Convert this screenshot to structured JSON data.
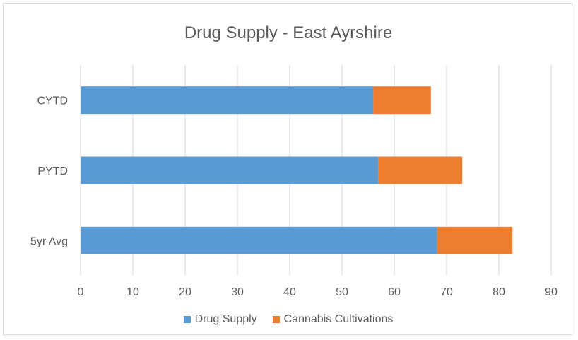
{
  "chart_data": {
    "type": "bar",
    "orientation": "horizontal",
    "stacked": true,
    "title": "Drug Supply - East Ayrshire",
    "xlabel": "",
    "ylabel": "",
    "categories": [
      "CYTD",
      "PYTD",
      "5yr Avg"
    ],
    "series": [
      {
        "name": "Drug Supply",
        "values": [
          56,
          57,
          68.2
        ],
        "color": "#5b9bd5"
      },
      {
        "name": "Cannabis Cultivations",
        "values": [
          11,
          16,
          14.4
        ],
        "color": "#ed7d31"
      }
    ],
    "xlim": [
      0,
      90
    ],
    "xticks": [
      0,
      10,
      20,
      30,
      40,
      50,
      60,
      70,
      80,
      90
    ],
    "grid": "vertical",
    "legend_position": "bottom"
  }
}
